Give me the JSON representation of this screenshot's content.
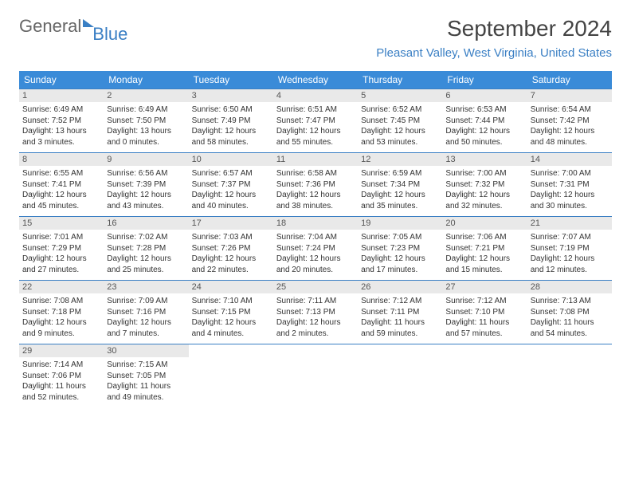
{
  "logo": {
    "part1": "General",
    "part2": "Blue"
  },
  "title": "September 2024",
  "location": "Pleasant Valley, West Virginia, United States",
  "colors": {
    "header_bg": "#3a8bd8",
    "accent": "#3a7fc4",
    "daynum_bg": "#e9e9e9",
    "text": "#333333"
  },
  "day_names": [
    "Sunday",
    "Monday",
    "Tuesday",
    "Wednesday",
    "Thursday",
    "Friday",
    "Saturday"
  ],
  "first_weekday": 0,
  "days": [
    {
      "n": 1,
      "sr": "6:49 AM",
      "ss": "7:52 PM",
      "dl": "13 hours and 3 minutes."
    },
    {
      "n": 2,
      "sr": "6:49 AM",
      "ss": "7:50 PM",
      "dl": "13 hours and 0 minutes."
    },
    {
      "n": 3,
      "sr": "6:50 AM",
      "ss": "7:49 PM",
      "dl": "12 hours and 58 minutes."
    },
    {
      "n": 4,
      "sr": "6:51 AM",
      "ss": "7:47 PM",
      "dl": "12 hours and 55 minutes."
    },
    {
      "n": 5,
      "sr": "6:52 AM",
      "ss": "7:45 PM",
      "dl": "12 hours and 53 minutes."
    },
    {
      "n": 6,
      "sr": "6:53 AM",
      "ss": "7:44 PM",
      "dl": "12 hours and 50 minutes."
    },
    {
      "n": 7,
      "sr": "6:54 AM",
      "ss": "7:42 PM",
      "dl": "12 hours and 48 minutes."
    },
    {
      "n": 8,
      "sr": "6:55 AM",
      "ss": "7:41 PM",
      "dl": "12 hours and 45 minutes."
    },
    {
      "n": 9,
      "sr": "6:56 AM",
      "ss": "7:39 PM",
      "dl": "12 hours and 43 minutes."
    },
    {
      "n": 10,
      "sr": "6:57 AM",
      "ss": "7:37 PM",
      "dl": "12 hours and 40 minutes."
    },
    {
      "n": 11,
      "sr": "6:58 AM",
      "ss": "7:36 PM",
      "dl": "12 hours and 38 minutes."
    },
    {
      "n": 12,
      "sr": "6:59 AM",
      "ss": "7:34 PM",
      "dl": "12 hours and 35 minutes."
    },
    {
      "n": 13,
      "sr": "7:00 AM",
      "ss": "7:32 PM",
      "dl": "12 hours and 32 minutes."
    },
    {
      "n": 14,
      "sr": "7:00 AM",
      "ss": "7:31 PM",
      "dl": "12 hours and 30 minutes."
    },
    {
      "n": 15,
      "sr": "7:01 AM",
      "ss": "7:29 PM",
      "dl": "12 hours and 27 minutes."
    },
    {
      "n": 16,
      "sr": "7:02 AM",
      "ss": "7:28 PM",
      "dl": "12 hours and 25 minutes."
    },
    {
      "n": 17,
      "sr": "7:03 AM",
      "ss": "7:26 PM",
      "dl": "12 hours and 22 minutes."
    },
    {
      "n": 18,
      "sr": "7:04 AM",
      "ss": "7:24 PM",
      "dl": "12 hours and 20 minutes."
    },
    {
      "n": 19,
      "sr": "7:05 AM",
      "ss": "7:23 PM",
      "dl": "12 hours and 17 minutes."
    },
    {
      "n": 20,
      "sr": "7:06 AM",
      "ss": "7:21 PM",
      "dl": "12 hours and 15 minutes."
    },
    {
      "n": 21,
      "sr": "7:07 AM",
      "ss": "7:19 PM",
      "dl": "12 hours and 12 minutes."
    },
    {
      "n": 22,
      "sr": "7:08 AM",
      "ss": "7:18 PM",
      "dl": "12 hours and 9 minutes."
    },
    {
      "n": 23,
      "sr": "7:09 AM",
      "ss": "7:16 PM",
      "dl": "12 hours and 7 minutes."
    },
    {
      "n": 24,
      "sr": "7:10 AM",
      "ss": "7:15 PM",
      "dl": "12 hours and 4 minutes."
    },
    {
      "n": 25,
      "sr": "7:11 AM",
      "ss": "7:13 PM",
      "dl": "12 hours and 2 minutes."
    },
    {
      "n": 26,
      "sr": "7:12 AM",
      "ss": "7:11 PM",
      "dl": "11 hours and 59 minutes."
    },
    {
      "n": 27,
      "sr": "7:12 AM",
      "ss": "7:10 PM",
      "dl": "11 hours and 57 minutes."
    },
    {
      "n": 28,
      "sr": "7:13 AM",
      "ss": "7:08 PM",
      "dl": "11 hours and 54 minutes."
    },
    {
      "n": 29,
      "sr": "7:14 AM",
      "ss": "7:06 PM",
      "dl": "11 hours and 52 minutes."
    },
    {
      "n": 30,
      "sr": "7:15 AM",
      "ss": "7:05 PM",
      "dl": "11 hours and 49 minutes."
    }
  ],
  "labels": {
    "sunrise": "Sunrise:",
    "sunset": "Sunset:",
    "daylight": "Daylight:"
  }
}
